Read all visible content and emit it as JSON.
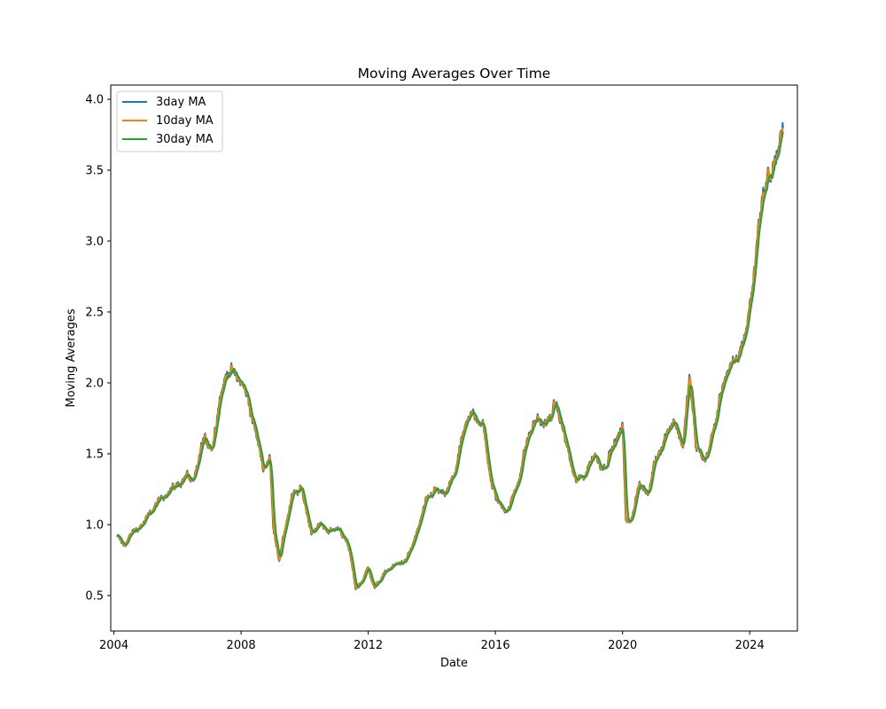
{
  "chart_data": {
    "type": "line",
    "title": "Moving Averages Over Time",
    "xlabel": "Date",
    "ylabel": "Moving Averages",
    "xlim": [
      2003.9,
      2025.5
    ],
    "ylim": [
      0.25,
      4.1
    ],
    "x_ticks": [
      2004,
      2008,
      2012,
      2016,
      2020,
      2024
    ],
    "y_ticks": [
      0.5,
      1.0,
      1.5,
      2.0,
      2.5,
      3.0,
      3.5,
      4.0
    ],
    "y_tick_labels": [
      "0.5",
      "1.0",
      "1.5",
      "2.0",
      "2.5",
      "3.0",
      "3.5",
      "4.0"
    ],
    "legend_position": "top-left",
    "grid": false,
    "anchor_points": {
      "x": [
        2004.1,
        2004.3,
        2004.6,
        2004.9,
        2005.2,
        2005.6,
        2006.0,
        2006.3,
        2006.5,
        2006.8,
        2007.1,
        2007.3,
        2007.6,
        2008.0,
        2008.2,
        2008.4,
        2008.7,
        2008.9,
        2009.0,
        2009.2,
        2009.4,
        2009.6,
        2009.9,
        2010.2,
        2010.5,
        2010.8,
        2011.1,
        2011.4,
        2011.6,
        2011.8,
        2012.0,
        2012.2,
        2012.4,
        2012.6,
        2012.9,
        2013.2,
        2013.5,
        2013.8,
        2014.1,
        2014.4,
        2014.7,
        2015.0,
        2015.3,
        2015.6,
        2015.9,
        2016.1,
        2016.4,
        2016.7,
        2017.0,
        2017.3,
        2017.6,
        2017.9,
        2018.2,
        2018.5,
        2018.8,
        2019.1,
        2019.4,
        2019.7,
        2020.0,
        2020.1,
        2020.25,
        2020.5,
        2020.8,
        2021.0,
        2021.3,
        2021.6,
        2021.9,
        2022.1,
        2022.3,
        2022.6,
        2022.9,
        2023.2,
        2023.4,
        2023.6,
        2023.9,
        2024.1,
        2024.3,
        2024.5,
        2024.7,
        2024.9,
        2025.05
      ],
      "y": [
        0.92,
        0.85,
        0.95,
        1.0,
        1.1,
        1.22,
        1.28,
        1.35,
        1.28,
        1.6,
        1.55,
        1.88,
        2.1,
        2.0,
        1.9,
        1.7,
        1.4,
        1.48,
        1.0,
        0.75,
        1.0,
        1.2,
        1.25,
        0.95,
        1.0,
        0.95,
        0.98,
        0.82,
        0.55,
        0.6,
        0.7,
        0.55,
        0.62,
        0.68,
        0.72,
        0.75,
        0.92,
        1.15,
        1.25,
        1.2,
        1.35,
        1.65,
        1.8,
        1.7,
        1.25,
        1.15,
        1.1,
        1.3,
        1.6,
        1.75,
        1.7,
        1.85,
        1.6,
        1.3,
        1.35,
        1.5,
        1.4,
        1.55,
        1.68,
        1.05,
        1.0,
        1.3,
        1.2,
        1.45,
        1.6,
        1.75,
        1.55,
        2.05,
        1.55,
        1.45,
        1.7,
        2.05,
        2.1,
        2.15,
        2.4,
        2.7,
        3.2,
        3.4,
        3.5,
        3.65,
        3.75
      ]
    },
    "series": [
      {
        "name": "3day MA",
        "color": "#1f77b4"
      },
      {
        "name": "10day MA",
        "color": "#ff7f0e"
      },
      {
        "name": "30day MA",
        "color": "#2ca02c"
      }
    ]
  }
}
